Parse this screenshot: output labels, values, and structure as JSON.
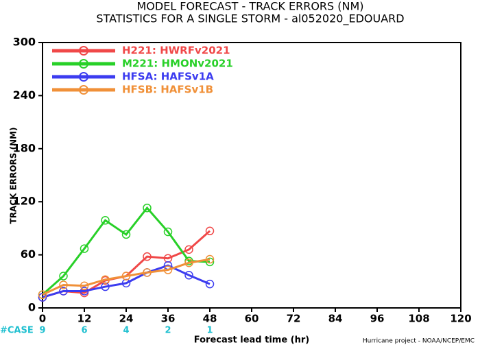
{
  "chart_data": {
    "type": "line",
    "title": "MODEL FORECAST - TRACK ERRORS (NM)",
    "subtitle": "STATISTICS FOR A SINGLE STORM - al052020_EDOUARD",
    "x_label": "Forecast lead time (hr)",
    "y_label": "TRACK ERRORS (NM)",
    "x": [
      0,
      6,
      12,
      18,
      24,
      30,
      36,
      42,
      48
    ],
    "xlim": [
      0,
      120
    ],
    "xticks": [
      0,
      12,
      24,
      36,
      48,
      60,
      72,
      84,
      96,
      108,
      120
    ],
    "ylim": [
      0,
      300
    ],
    "yticks": [
      0,
      60,
      120,
      180,
      240,
      300
    ],
    "legend": "upper left",
    "series": [
      {
        "name": "H221: HWRFv2021",
        "color": "#f04848",
        "values": [
          12,
          19,
          17,
          31,
          36,
          58,
          56,
          66,
          87
        ]
      },
      {
        "name": "M221: HMONv2021",
        "color": "#28d028",
        "values": [
          15,
          36,
          67,
          99,
          83,
          113,
          86,
          53,
          52
        ]
      },
      {
        "name": "HFSA: HAFSv1A",
        "color": "#3c3cf0",
        "values": [
          12,
          19,
          19,
          24,
          28,
          40,
          48,
          37,
          27
        ]
      },
      {
        "name": "HFSB: HAFSv1B",
        "color": "#f09038",
        "values": [
          15,
          26,
          25,
          32,
          36,
          40,
          43,
          51,
          55
        ]
      }
    ],
    "cases": {
      "label": "#CASE",
      "color": "#20c0d0",
      "x": [
        0,
        12,
        24,
        36,
        48
      ],
      "values": [
        9,
        6,
        4,
        2,
        1
      ]
    },
    "footer": "Hurricane project - NOAA/NCEP/EMC"
  }
}
